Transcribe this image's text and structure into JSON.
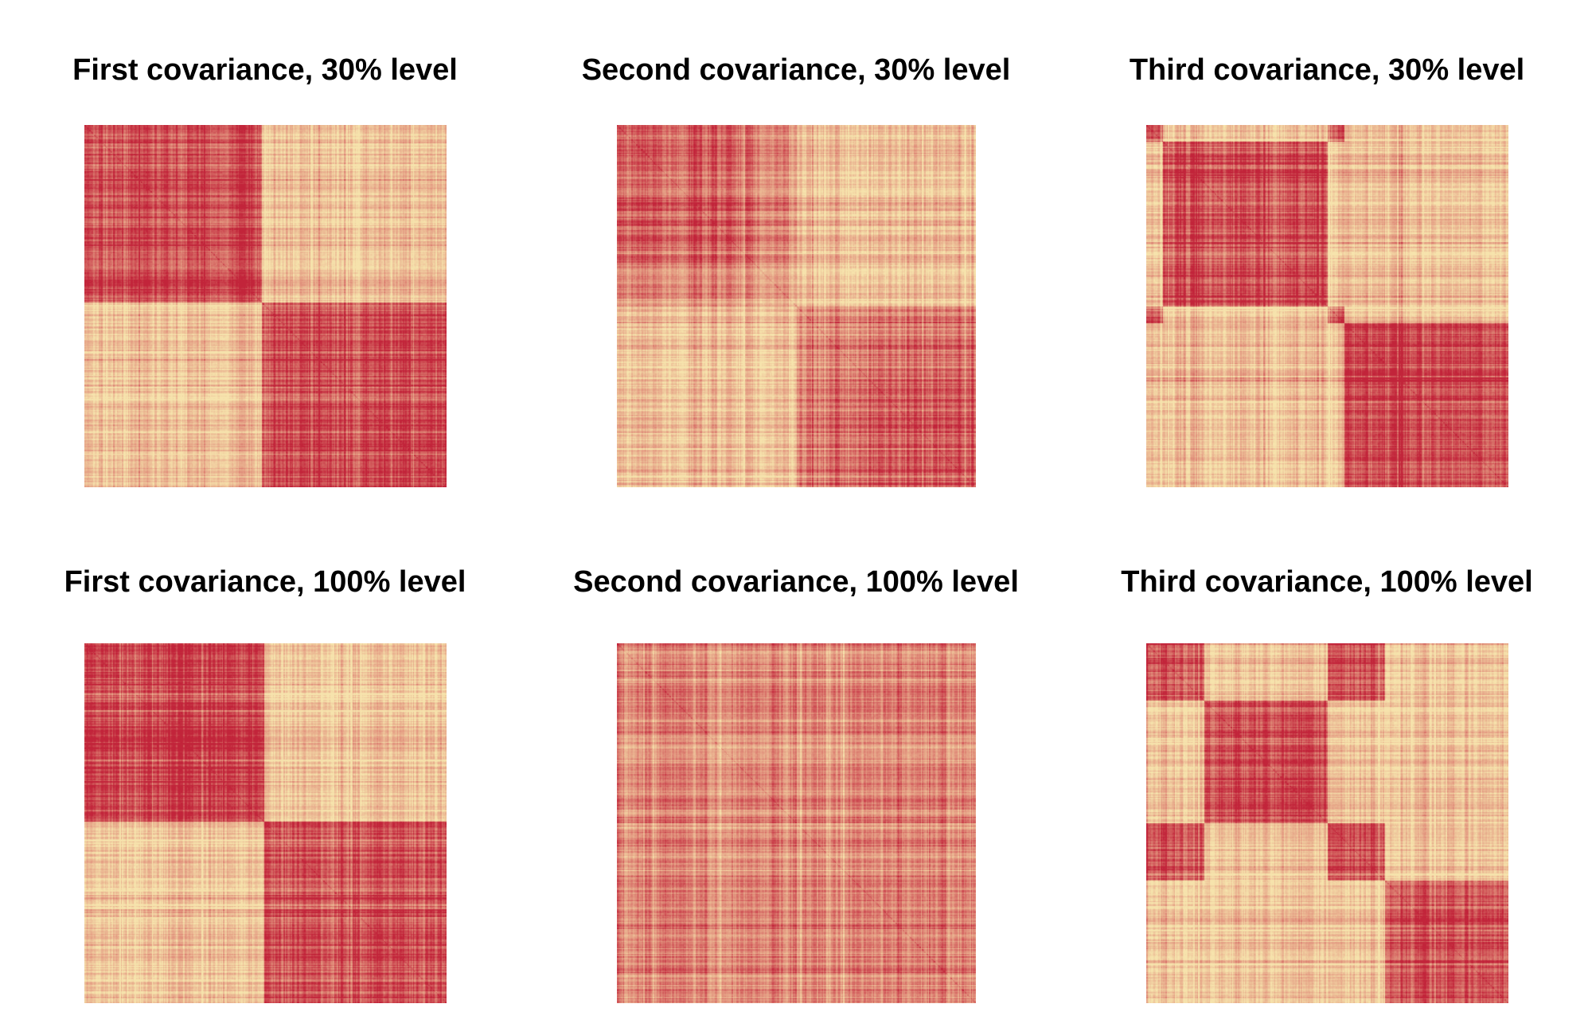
{
  "page": {
    "background": "#FFFFFF",
    "text_color": "#000000"
  },
  "chart_data": {
    "type": "heatmap",
    "layout_description": "2x3 grid of covariance matrix image plots, plaid red-on-cream texture, no axes or legends",
    "palette": {
      "low": "#F6E3AC",
      "mid": "#E2947E",
      "high": "#C2243A"
    },
    "panels": [
      {
        "title": "First covariance, 30% level",
        "grid_row": 1,
        "grid_col": 1,
        "cluster_boundaries": [
          0,
          0.49,
          1
        ],
        "cluster_groups": [
          0,
          1
        ],
        "dark_level": 0.8,
        "light_level": 0.2,
        "soften_clusters": [],
        "seed": 101
      },
      {
        "title": "Second covariance, 30% level",
        "grid_row": 1,
        "grid_col": 2,
        "cluster_boundaries": [
          0,
          0.5,
          1
        ],
        "cluster_groups": [
          0,
          1
        ],
        "dark_level": 0.74,
        "light_level": 0.23,
        "soften_clusters": [
          0,
          1
        ],
        "seed": 202
      },
      {
        "title": "Third covariance, 30% level",
        "grid_row": 1,
        "grid_col": 3,
        "cluster_boundaries": [
          0,
          0.047,
          0.5,
          0.547,
          1
        ],
        "cluster_groups": [
          0,
          1,
          0,
          2
        ],
        "dark_level": 0.8,
        "light_level": 0.21,
        "soften_clusters": [],
        "seed": 303
      },
      {
        "title": "First covariance, 100% level",
        "grid_row": 2,
        "grid_col": 1,
        "cluster_boundaries": [
          0,
          0.497,
          1
        ],
        "cluster_groups": [
          0,
          1
        ],
        "dark_level": 0.82,
        "light_level": 0.18,
        "soften_clusters": [],
        "seed": 404
      },
      {
        "title": "Second covariance, 100% level",
        "grid_row": 2,
        "grid_col": 2,
        "cluster_boundaries": [
          0,
          1
        ],
        "cluster_groups": [
          0
        ],
        "dark_level": 0.52,
        "light_level": 0.52,
        "soften_clusters": [],
        "seed": 505
      },
      {
        "title": "Third covariance, 100% level",
        "grid_row": 2,
        "grid_col": 3,
        "cluster_boundaries": [
          0,
          0.16,
          0.5,
          0.66,
          1
        ],
        "cluster_groups": [
          0,
          1,
          0,
          2
        ],
        "dark_level": 0.8,
        "light_level": 0.2,
        "soften_clusters": [],
        "seed": 606
      }
    ]
  }
}
